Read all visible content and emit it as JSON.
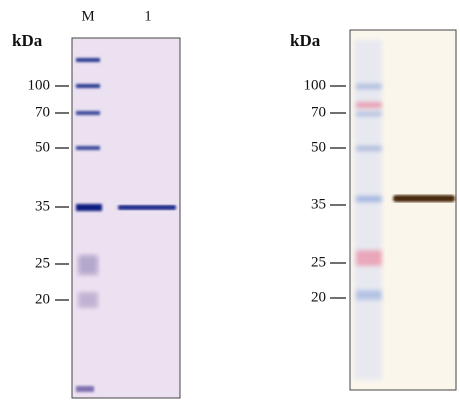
{
  "left_panel": {
    "unit": "kDa",
    "lanes": [
      "M",
      "1"
    ],
    "markers": [
      "100",
      "70",
      "50",
      "35",
      "25",
      "20"
    ]
  },
  "right_panel": {
    "unit": "kDa",
    "markers": [
      "100",
      "70",
      "50",
      "35",
      "25",
      "20"
    ]
  }
}
